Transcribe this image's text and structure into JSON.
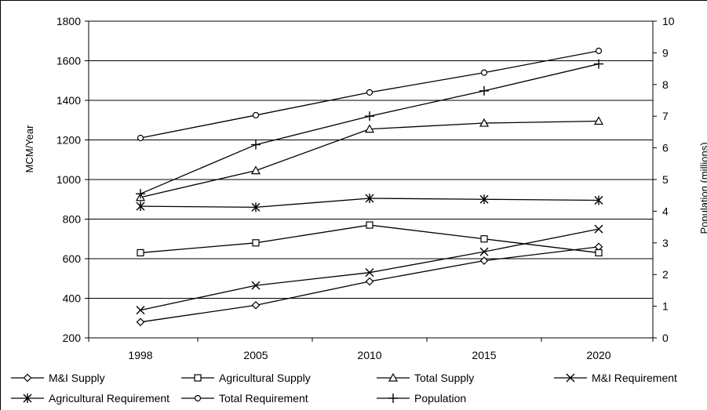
{
  "chart_data": {
    "type": "line",
    "title": "",
    "categories": [
      "1998",
      "2005",
      "2010",
      "2015",
      "2020"
    ],
    "y_left": {
      "label": "MCM/Year",
      "range": [
        200,
        1800
      ],
      "ticks": [
        "200",
        "400",
        "600",
        "800",
        "1000",
        "1200",
        "1400",
        "1600",
        "1800"
      ]
    },
    "y_right": {
      "label": "Population (millions)",
      "range": [
        0,
        10
      ],
      "ticks": [
        "0",
        "1",
        "2",
        "3",
        "4",
        "5",
        "6",
        "7",
        "8",
        "9",
        "10"
      ]
    },
    "grid": {
      "horizontal": true,
      "vertical": false
    },
    "legend_placement": "bottom",
    "series": [
      {
        "name": "M&I Supply",
        "axis": "left",
        "marker": "diamond",
        "values": [
          280,
          365,
          485,
          590,
          660
        ]
      },
      {
        "name": "Agricultural Supply",
        "axis": "left",
        "marker": "square",
        "values": [
          630,
          680,
          770,
          700,
          630
        ]
      },
      {
        "name": "Total Supply",
        "axis": "left",
        "marker": "triangle",
        "values": [
          910,
          1045,
          1255,
          1285,
          1295
        ]
      },
      {
        "name": "M&I Requirement",
        "axis": "left",
        "marker": "x",
        "values": [
          340,
          465,
          530,
          635,
          750
        ]
      },
      {
        "name": "Agricultural Requirement",
        "axis": "left",
        "marker": "asterisk",
        "values": [
          865,
          860,
          905,
          900,
          895
        ]
      },
      {
        "name": "Total Requirement",
        "axis": "left",
        "marker": "circle",
        "values": [
          1210,
          1325,
          1440,
          1540,
          1650
        ]
      },
      {
        "name": "Population",
        "axis": "right",
        "marker": "plus",
        "values": [
          4.55,
          6.1,
          7.0,
          7.8,
          8.65
        ]
      }
    ]
  }
}
